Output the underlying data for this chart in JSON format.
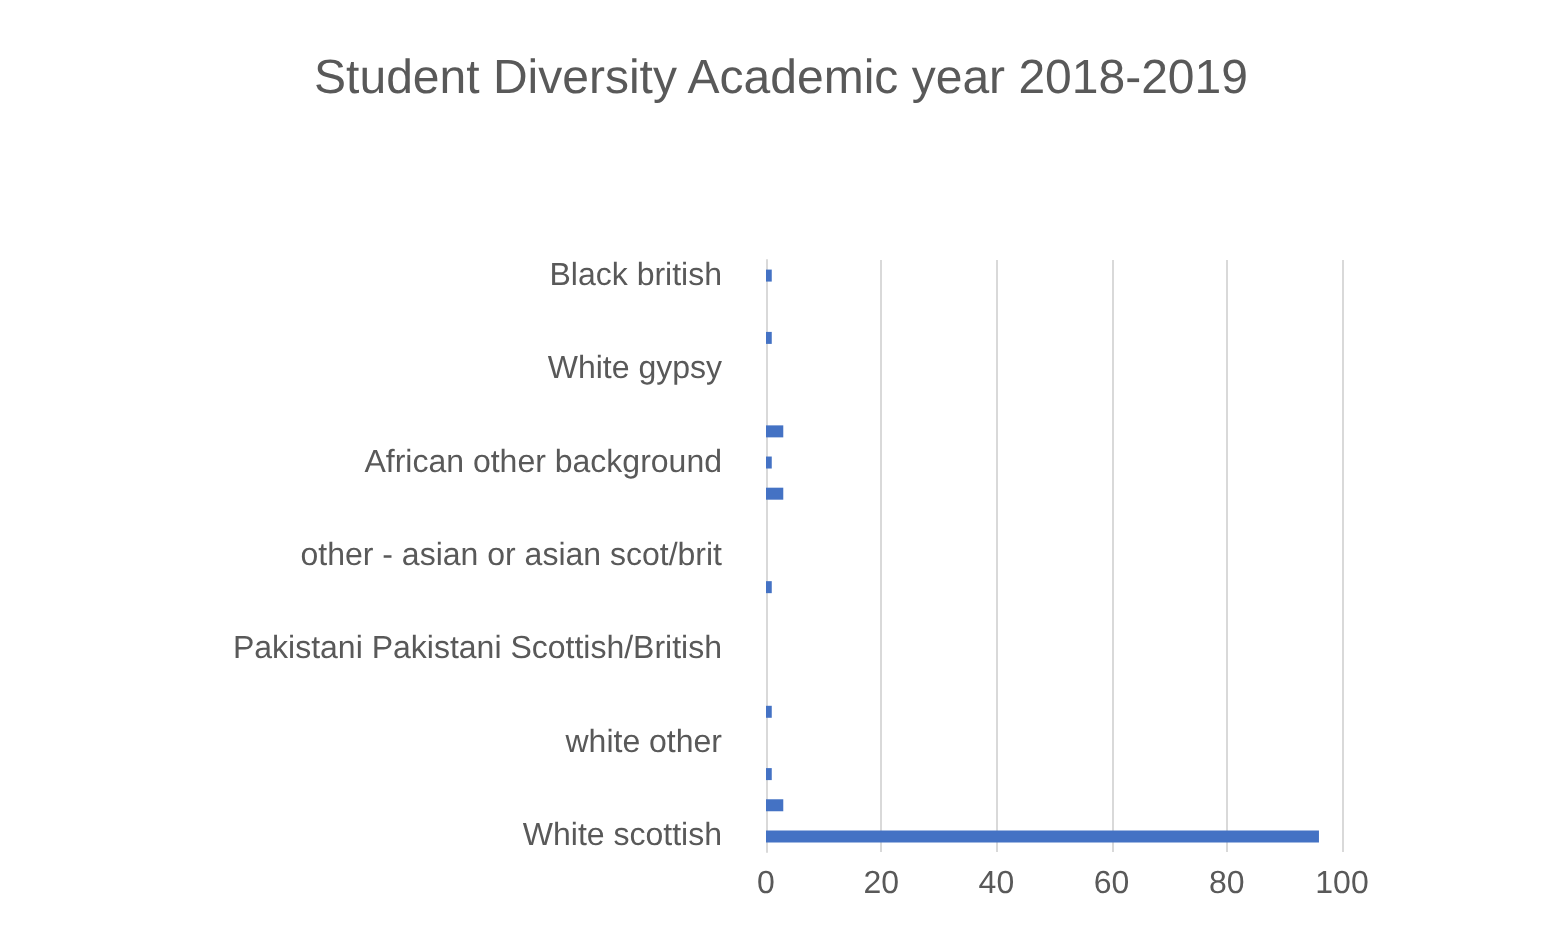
{
  "chart_data": {
    "type": "bar",
    "orientation": "horizontal",
    "title": "Student Diversity Academic year 2018-2019",
    "categories": [
      "Black british",
      null,
      null,
      "White gypsy",
      null,
      null,
      "African other background",
      null,
      null,
      "other - asian or asian scot/brit",
      null,
      null,
      "Pakistani Pakistani Scottish/British",
      null,
      null,
      "white other",
      null,
      null,
      "White scottish"
    ],
    "values": [
      1,
      null,
      1,
      null,
      null,
      3,
      1,
      3,
      null,
      null,
      1,
      null,
      null,
      null,
      1,
      null,
      1,
      3,
      96
    ],
    "color": "#4472c4",
    "xlim": [
      0,
      100
    ],
    "xticks": [
      0,
      20,
      40,
      60,
      80,
      100
    ],
    "grid": "x"
  }
}
